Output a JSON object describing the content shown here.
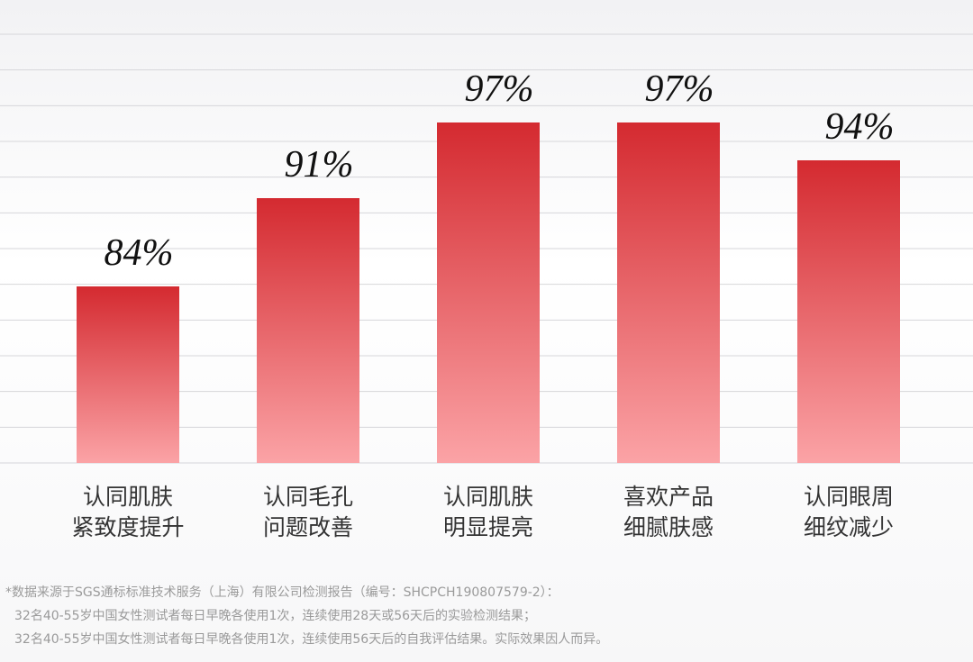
{
  "chart_data": {
    "type": "bar",
    "categories": [
      [
        "认同肌肤",
        "紧致度提升"
      ],
      [
        "认同毛孔",
        "问题改善"
      ],
      [
        "认同肌肤",
        "明显提亮"
      ],
      [
        "喜欢产品",
        "细腻肤感"
      ],
      [
        "认同眼周",
        "细纹减少"
      ]
    ],
    "values": [
      84,
      91,
      97,
      97,
      94
    ],
    "value_labels": [
      "84%",
      "91%",
      "97%",
      "97%",
      "94%"
    ],
    "colors": [
      "#d42a30",
      "#fba3a6"
    ],
    "ylim": [
      70,
      104
    ],
    "notes": [
      "*数据来源于SGS通标标准技术服务（上海）有限公司检测报告（编号：SHCPCH190807579-2）：",
      "32名40-55岁中国女性测试者每日早晚各使用1次，连续使用28天或56天后的实验检测结果；",
      "32名40-55岁中国女性测试者每日早晚各使用1次，连续使用56天后的自我评估结果。实际效果因人而异。"
    ]
  }
}
